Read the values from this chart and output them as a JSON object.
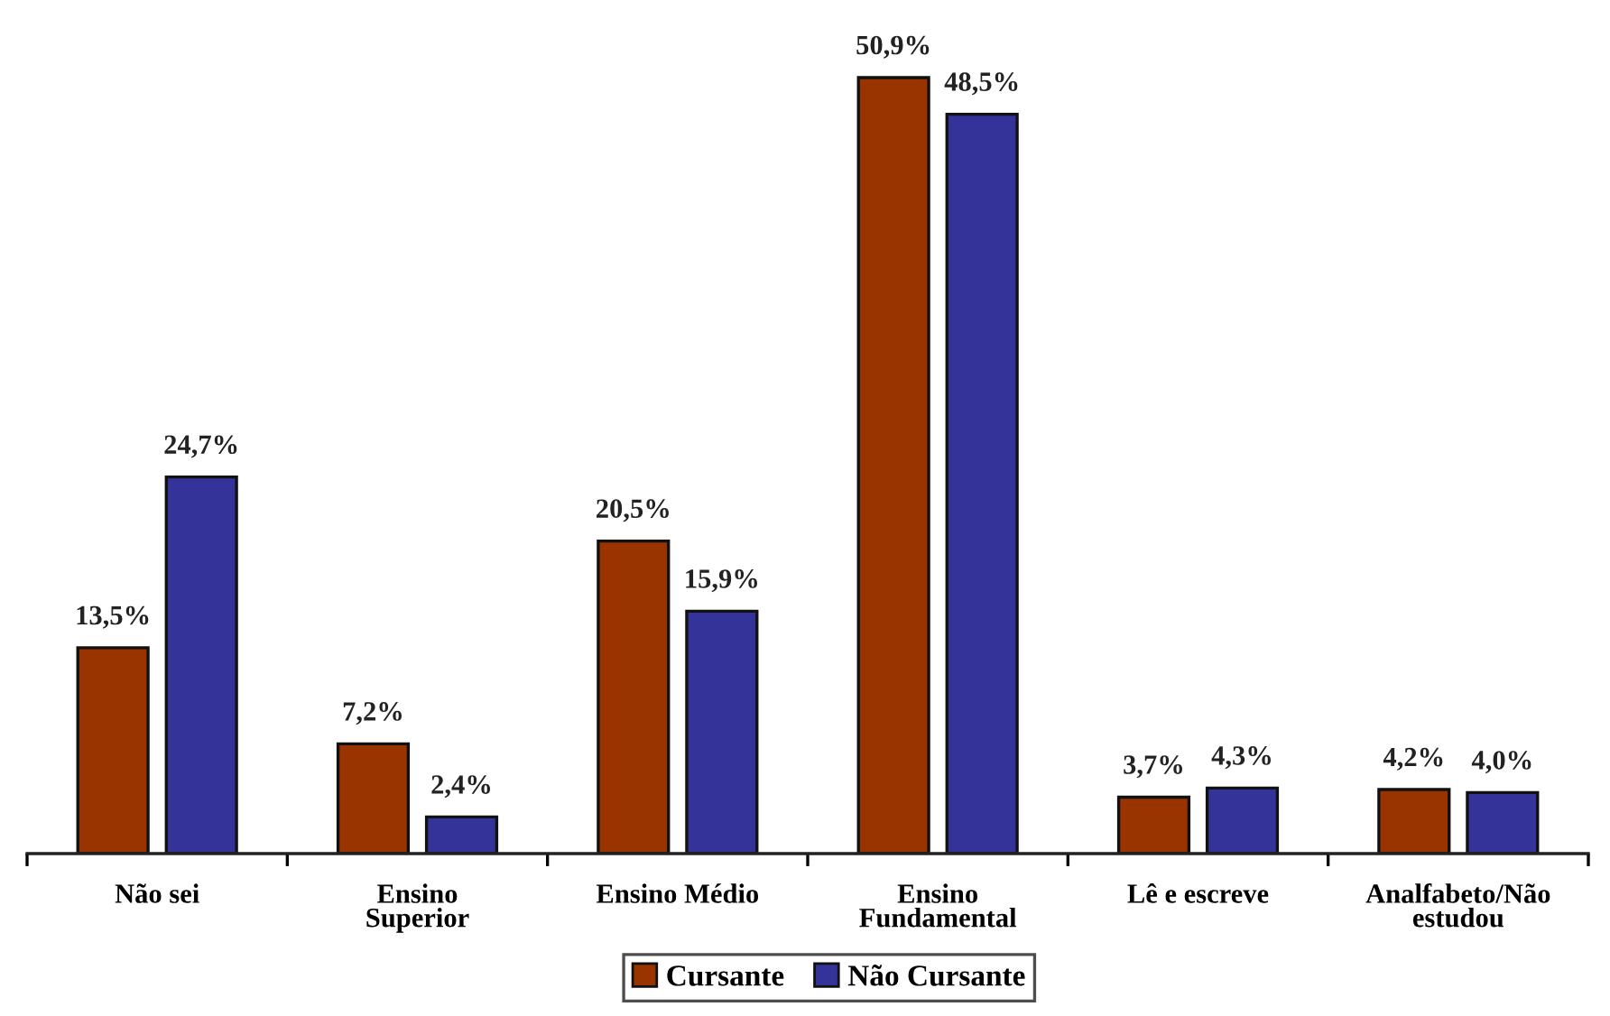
{
  "chart_data": {
    "type": "bar",
    "categories": [
      "Não sei",
      "Ensino\nSuperior",
      "Ensino Médio",
      "Ensino\nFundamental",
      "Lê e escreve",
      "Analfabeto/Não\nestudou"
    ],
    "series": [
      {
        "name": "Cursante",
        "color": "#993300",
        "values": [
          13.5,
          7.2,
          20.5,
          50.9,
          3.7,
          4.2
        ],
        "value_labels": [
          "13,5%",
          "7,2%",
          "20,5%",
          "50,9%",
          "3,7%",
          "4,2%"
        ]
      },
      {
        "name": "Não Cursante",
        "color": "#333399",
        "values": [
          24.7,
          2.4,
          15.9,
          48.5,
          4.3,
          4.0
        ],
        "value_labels": [
          "24,7%",
          "2,4%",
          "15,9%",
          "48,5%",
          "4,3%",
          "4,0%"
        ]
      }
    ],
    "legend": "bottom"
  }
}
